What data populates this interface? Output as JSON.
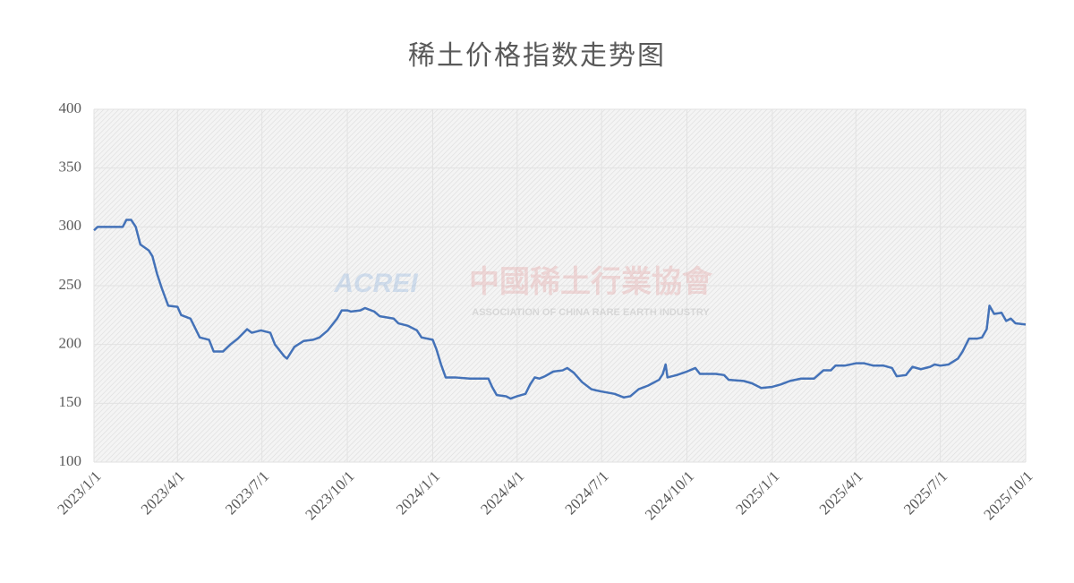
{
  "chart_data": {
    "type": "line",
    "title": "稀土价格指数走势图",
    "watermark": {
      "logo": "ACREI",
      "name": "中國稀土行業協會",
      "subtitle": "ASSOCIATION OF CHINA RARE EARTH INDUSTRY"
    },
    "xlim": [
      "2023/1/1",
      "2025/10/1"
    ],
    "xticks": [
      "2023/1/1",
      "2023/4/1",
      "2023/7/1",
      "2023/10/1",
      "2024/1/1",
      "2024/4/1",
      "2024/7/1",
      "2024/10/1",
      "2025/1/1",
      "2025/4/1",
      "2025/7/1",
      "2025/10/1"
    ],
    "ylim": [
      100,
      400
    ],
    "yticks": [
      100,
      150,
      200,
      250,
      300,
      350,
      400
    ],
    "grid": true,
    "x": [
      "2023/1/1",
      "2023/1/5",
      "2023/1/20",
      "2023/2/1",
      "2023/2/5",
      "2023/2/10",
      "2023/2/15",
      "2023/2/20",
      "2023/3/1",
      "2023/3/5",
      "2023/3/10",
      "2023/3/15",
      "2023/3/22",
      "2023/4/1",
      "2023/4/5",
      "2023/4/15",
      "2023/4/25",
      "2023/5/5",
      "2023/5/10",
      "2023/5/20",
      "2023/5/28",
      "2023/6/5",
      "2023/6/15",
      "2023/6/20",
      "2023/6/30",
      "2023/7/10",
      "2023/7/15",
      "2023/7/25",
      "2023/7/28",
      "2023/8/5",
      "2023/8/15",
      "2023/8/25",
      "2023/9/1",
      "2023/9/10",
      "2023/9/20",
      "2023/9/25",
      "2023/10/1",
      "2023/10/5",
      "2023/10/15",
      "2023/10/20",
      "2023/10/30",
      "2023/11/5",
      "2023/11/20",
      "2023/11/25",
      "2023/12/5",
      "2023/12/15",
      "2023/12/20",
      "2024/1/1",
      "2024/1/5",
      "2024/1/10",
      "2024/1/15",
      "2024/1/25",
      "2024/2/10",
      "2024/3/1",
      "2024/3/5",
      "2024/3/10",
      "2024/3/20",
      "2024/3/25",
      "2024/4/1",
      "2024/4/10",
      "2024/4/15",
      "2024/4/20",
      "2024/4/25",
      "2024/5/1",
      "2024/5/10",
      "2024/5/20",
      "2024/5/25",
      "2024/6/1",
      "2024/6/10",
      "2024/6/20",
      "2024/6/25",
      "2024/7/1",
      "2024/7/15",
      "2024/7/25",
      "2024/8/1",
      "2024/8/10",
      "2024/8/20",
      "2024/9/1",
      "2024/9/5",
      "2024/9/8",
      "2024/9/10",
      "2024/9/20",
      "2024/10/1",
      "2024/10/10",
      "2024/10/15",
      "2024/11/1",
      "2024/11/10",
      "2024/11/15",
      "2024/12/1",
      "2024/12/10",
      "2024/12/20",
      "2025/1/1",
      "2025/1/10",
      "2025/1/20",
      "2025/2/1",
      "2025/2/15",
      "2025/2/25",
      "2025/3/5",
      "2025/3/10",
      "2025/3/20",
      "2025/4/1",
      "2025/4/10",
      "2025/4/20",
      "2025/5/1",
      "2025/5/10",
      "2025/5/15",
      "2025/5/25",
      "2025/6/1",
      "2025/6/10",
      "2025/6/20",
      "2025/6/25",
      "2025/7/1",
      "2025/7/10",
      "2025/7/20",
      "2025/7/25",
      "2025/8/1",
      "2025/8/10",
      "2025/8/15",
      "2025/8/20",
      "2025/8/23",
      "2025/8/28",
      "2025/9/5",
      "2025/9/10",
      "2025/9/15",
      "2025/9/20",
      "2025/10/1"
    ],
    "series": [
      {
        "name": "稀土价格指数",
        "color": "#4472b8",
        "values": [
          297,
          300,
          300,
          300,
          306,
          306,
          300,
          285,
          280,
          275,
          260,
          248,
          233,
          232,
          225,
          222,
          206,
          204,
          194,
          194,
          200,
          205,
          213,
          210,
          212,
          210,
          200,
          190,
          188,
          198,
          203,
          204,
          206,
          212,
          222,
          229,
          229,
          228,
          229,
          231,
          228,
          224,
          222,
          218,
          216,
          212,
          206,
          204,
          196,
          183,
          172,
          172,
          171,
          171,
          164,
          157,
          156,
          154,
          156,
          158,
          166,
          172,
          171,
          173,
          177,
          178,
          180,
          176,
          168,
          162,
          161,
          160,
          158,
          155,
          156,
          162,
          165,
          170,
          175,
          183,
          172,
          174,
          177,
          180,
          175,
          175,
          174,
          170,
          169,
          167,
          163,
          164,
          166,
          169,
          171,
          171,
          178,
          178,
          182,
          182,
          184,
          184,
          182,
          182,
          180,
          173,
          174,
          181,
          179,
          181,
          183,
          182,
          183,
          188,
          194,
          205,
          205,
          206,
          213,
          233,
          226,
          227,
          220,
          222,
          218,
          217
        ]
      }
    ]
  }
}
